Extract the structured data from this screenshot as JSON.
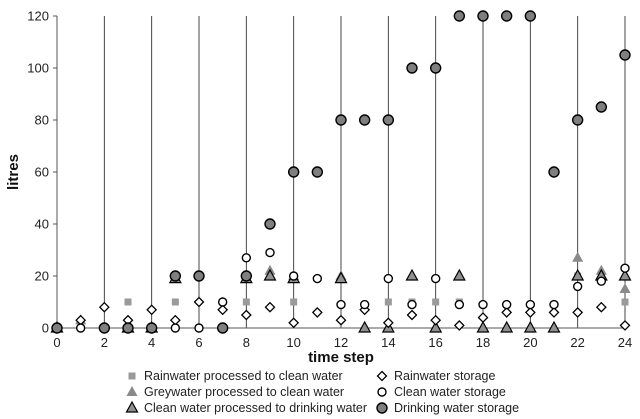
{
  "chart_data": {
    "type": "scatter",
    "title": "",
    "xlabel": "time step",
    "ylabel": "litres",
    "xlim": [
      0,
      24
    ],
    "ylim": [
      0,
      120
    ],
    "x_ticks": [
      "0",
      "2",
      "4",
      "6",
      "8",
      "10",
      "12",
      "14",
      "16",
      "18",
      "20",
      "22",
      "24"
    ],
    "y_ticks": [
      "0",
      "20",
      "40",
      "60",
      "80",
      "100",
      "120"
    ],
    "grid": "vertical lines at every even time step",
    "legend_placement": "bottom",
    "series": [
      {
        "name": "Rainwater processed to clean water",
        "marker": "square",
        "color": "#9a9a9a",
        "points": [
          [
            3,
            10
          ],
          [
            5,
            10
          ],
          [
            8,
            10
          ],
          [
            10,
            10
          ],
          [
            14,
            10
          ],
          [
            15,
            10
          ],
          [
            16,
            10
          ],
          [
            17,
            10
          ],
          [
            22,
            20
          ],
          [
            23,
            20
          ],
          [
            24,
            10
          ]
        ]
      },
      {
        "name": "Greywater processed to clean water",
        "marker": "triangle",
        "color": "#8a8a8a",
        "points": [
          [
            1,
            3
          ],
          [
            9,
            22
          ],
          [
            10,
            20
          ],
          [
            12,
            20
          ],
          [
            22,
            27
          ],
          [
            23,
            22
          ],
          [
            24,
            15
          ]
        ]
      },
      {
        "name": "Clean water processed to drinking water",
        "marker": "triangle-outlined",
        "color": "#909090",
        "points": [
          [
            0,
            0
          ],
          [
            3,
            0
          ],
          [
            4,
            0
          ],
          [
            5,
            19
          ],
          [
            8,
            19
          ],
          [
            9,
            20
          ],
          [
            10,
            19
          ],
          [
            12,
            19
          ],
          [
            13,
            0
          ],
          [
            14,
            0
          ],
          [
            15,
            20
          ],
          [
            16,
            0
          ],
          [
            17,
            20
          ],
          [
            18,
            0
          ],
          [
            19,
            0
          ],
          [
            20,
            0
          ],
          [
            21,
            0
          ],
          [
            22,
            20
          ],
          [
            23,
            20
          ],
          [
            24,
            20
          ]
        ]
      },
      {
        "name": "Rainwater storage",
        "marker": "diamond-open",
        "color": "#000000",
        "points": [
          [
            1,
            3
          ],
          [
            2,
            8
          ],
          [
            3,
            3
          ],
          [
            4,
            7
          ],
          [
            5,
            3
          ],
          [
            6,
            10
          ],
          [
            7,
            7
          ],
          [
            8,
            5
          ],
          [
            9,
            8
          ],
          [
            10,
            2
          ],
          [
            11,
            6
          ],
          [
            12,
            3
          ],
          [
            13,
            7
          ],
          [
            14,
            2
          ],
          [
            15,
            5
          ],
          [
            16,
            3
          ],
          [
            17,
            1
          ],
          [
            18,
            4
          ],
          [
            19,
            6
          ],
          [
            20,
            6
          ],
          [
            21,
            6
          ],
          [
            22,
            6
          ],
          [
            23,
            8
          ],
          [
            24,
            1
          ]
        ]
      },
      {
        "name": "Clean water storage",
        "marker": "circle-open",
        "color": "#000000",
        "points": [
          [
            0,
            0
          ],
          [
            1,
            0
          ],
          [
            2,
            0
          ],
          [
            3,
            0
          ],
          [
            4,
            0
          ],
          [
            5,
            0
          ],
          [
            6,
            0
          ],
          [
            7,
            10
          ],
          [
            8,
            27
          ],
          [
            9,
            29
          ],
          [
            10,
            20
          ],
          [
            11,
            19
          ],
          [
            12,
            9
          ],
          [
            13,
            9
          ],
          [
            14,
            19
          ],
          [
            15,
            9
          ],
          [
            16,
            19
          ],
          [
            17,
            9
          ],
          [
            18,
            9
          ],
          [
            19,
            9
          ],
          [
            20,
            9
          ],
          [
            21,
            9
          ],
          [
            22,
            16
          ],
          [
            23,
            18
          ],
          [
            24,
            23
          ]
        ]
      },
      {
        "name": "Drinking water storage",
        "marker": "circle-filled",
        "color": "#7f7f7f",
        "points": [
          [
            0,
            0
          ],
          [
            2,
            0
          ],
          [
            3,
            0
          ],
          [
            4,
            0
          ],
          [
            5,
            20
          ],
          [
            6,
            20
          ],
          [
            7,
            0
          ],
          [
            8,
            20
          ],
          [
            9,
            40
          ],
          [
            10,
            60
          ],
          [
            11,
            60
          ],
          [
            12,
            80
          ],
          [
            13,
            80
          ],
          [
            14,
            80
          ],
          [
            15,
            100
          ],
          [
            16,
            100
          ],
          [
            17,
            120
          ],
          [
            18,
            120
          ],
          [
            19,
            120
          ],
          [
            20,
            120
          ],
          [
            21,
            60
          ],
          [
            22,
            80
          ],
          [
            23,
            85
          ],
          [
            24,
            105
          ]
        ]
      }
    ]
  }
}
